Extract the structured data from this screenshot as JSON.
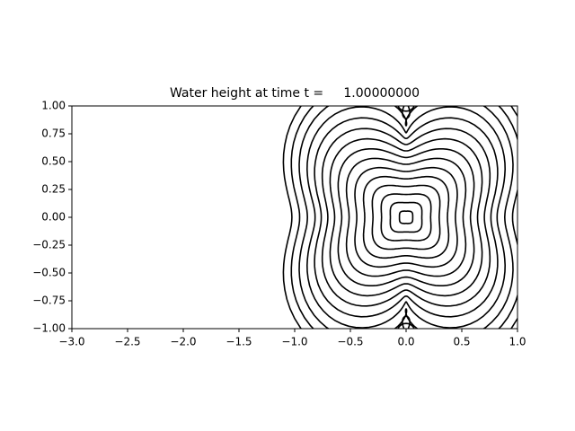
{
  "chart_data": {
    "type": "contour",
    "title": "Water height at time t =     1.00000000",
    "color": "#000000",
    "xlim": [
      -3,
      1
    ],
    "ylim": [
      -1,
      1
    ],
    "xticks": [
      {
        "value": -3,
        "label": "−3.0"
      },
      {
        "value": -2.5,
        "label": "−2.5"
      },
      {
        "value": -2,
        "label": "−2.0"
      },
      {
        "value": -1.5,
        "label": "−1.5"
      },
      {
        "value": -1,
        "label": "−1.0"
      },
      {
        "value": -0.5,
        "label": "−0.5"
      },
      {
        "value": 0,
        "label": "0.0"
      },
      {
        "value": 0.5,
        "label": "0.5"
      },
      {
        "value": 1,
        "label": "1.0"
      }
    ],
    "yticks": [
      {
        "value": -1,
        "label": "−1.00"
      },
      {
        "value": -0.75,
        "label": "−0.75"
      },
      {
        "value": -0.5,
        "label": "−0.50"
      },
      {
        "value": -0.25,
        "label": "−0.25"
      },
      {
        "value": 0,
        "label": "0.00"
      },
      {
        "value": 0.25,
        "label": "0.25"
      },
      {
        "value": 0.5,
        "label": "0.50"
      },
      {
        "value": 0.75,
        "label": "0.75"
      },
      {
        "value": 1,
        "label": "1.00"
      }
    ]
  }
}
